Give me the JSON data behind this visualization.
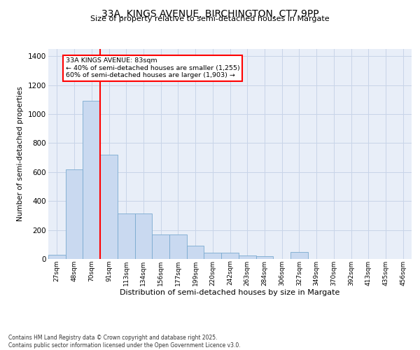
{
  "title_line1": "33A, KINGS AVENUE, BIRCHINGTON, CT7 9PP",
  "title_line2": "Size of property relative to semi-detached houses in Margate",
  "xlabel": "Distribution of semi-detached houses by size in Margate",
  "ylabel": "Number of semi-detached properties",
  "bins": [
    "27sqm",
    "48sqm",
    "70sqm",
    "91sqm",
    "113sqm",
    "134sqm",
    "156sqm",
    "177sqm",
    "199sqm",
    "220sqm",
    "242sqm",
    "263sqm",
    "284sqm",
    "306sqm",
    "327sqm",
    "349sqm",
    "370sqm",
    "392sqm",
    "413sqm",
    "435sqm",
    "456sqm"
  ],
  "values": [
    30,
    620,
    1090,
    720,
    315,
    315,
    170,
    170,
    90,
    45,
    45,
    25,
    20,
    0,
    50,
    0,
    0,
    0,
    0,
    0,
    0
  ],
  "bar_color": "#c9d9f0",
  "bar_edge_color": "#7aaad0",
  "red_line_bin": 2,
  "annotation_text": "33A KINGS AVENUE: 83sqm\n← 40% of semi-detached houses are smaller (1,255)\n60% of semi-detached houses are larger (1,903) →",
  "annotation_box_color": "white",
  "annotation_box_edge": "red",
  "ylim": [
    0,
    1450
  ],
  "yticks": [
    0,
    200,
    400,
    600,
    800,
    1000,
    1200,
    1400
  ],
  "grid_color": "#c8d4e8",
  "background_color": "#e8eef8",
  "footer_line1": "Contains HM Land Registry data © Crown copyright and database right 2025.",
  "footer_line2": "Contains public sector information licensed under the Open Government Licence v3.0."
}
